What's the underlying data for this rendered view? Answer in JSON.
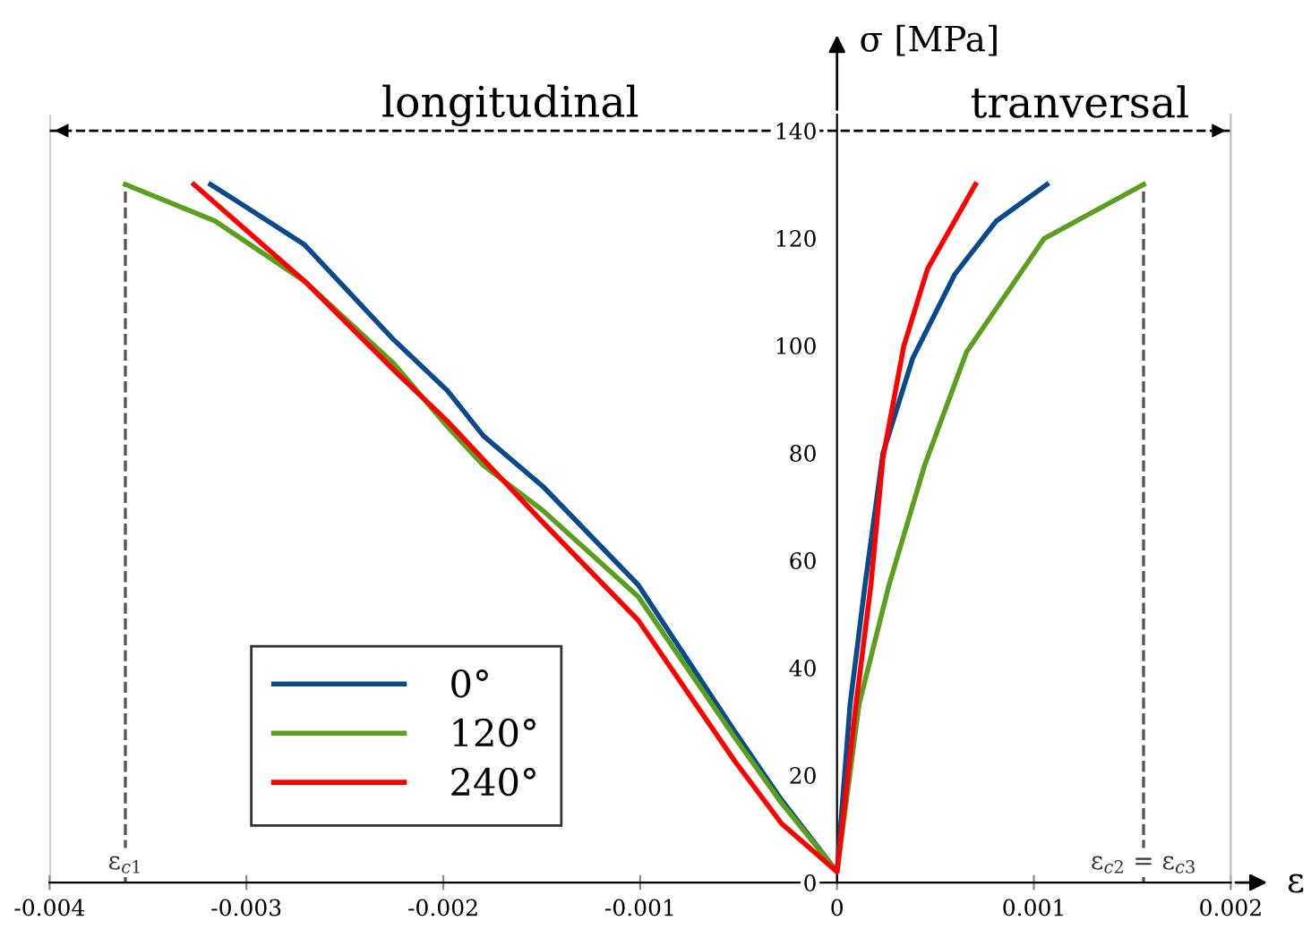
{
  "chart_data": {
    "type": "line",
    "xlabel": "ε",
    "ylabel": "σ [MPa]",
    "xlim": [
      -0.004,
      0.002
    ],
    "xticks": [
      -0.004,
      -0.003,
      -0.002,
      -0.001,
      0,
      0.001,
      0.002
    ],
    "ylim": [
      0,
      143
    ],
    "yticks": [
      0,
      20,
      40,
      60,
      80,
      100,
      120,
      140
    ],
    "grid": false,
    "legend": "bottom left",
    "line_style": "solid",
    "marker": "none",
    "series": [
      {
        "name": "0°",
        "color": "#0a4a8a",
        "x": [
          -0.003182,
          -0.00316,
          -0.002705,
          -0.00225,
          -0.001979,
          -0.001797,
          -0.001495,
          -0.001009,
          -0.000521,
          -0.000282,
          0,
          6.64e-05,
          0.000142,
          0.000233,
          0.000385,
          0.000597,
          0.000809,
          0.001066
        ],
        "values": [
          130,
          129.5,
          118.8,
          101,
          91.6,
          83.2,
          73.8,
          55.4,
          28.2,
          15.4,
          2,
          33.2,
          55.4,
          79.9,
          97.7,
          113.2,
          123.2,
          130
        ]
      },
      {
        "name": "120°",
        "color": "#5a9f1e",
        "x": [
          -0.003615,
          -0.00316,
          -0.002705,
          -0.00225,
          -0.001979,
          -0.001797,
          -0.001495,
          -0.001009,
          -0.000521,
          -0.000282,
          0,
          0.000112,
          0.000264,
          0.000445,
          0.000658,
          0.001051,
          0.001557
        ],
        "values": [
          130,
          123.2,
          112,
          96.6,
          84.9,
          77.7,
          69.3,
          53.2,
          27.1,
          14.8,
          2,
          33.2,
          55.4,
          77.7,
          98.8,
          119.9,
          130
        ]
      },
      {
        "name": "240°",
        "color": "#ff0000",
        "x": [
          -0.003267,
          -0.002705,
          -0.00225,
          -0.001979,
          -0.001797,
          -0.001495,
          -0.001009,
          -0.000521,
          -0.000282,
          0,
          9.67e-05,
          0.000172,
          0.000233,
          0.000339,
          0.00046,
          0.000703
        ],
        "values": [
          130,
          112,
          95.4,
          85.9,
          78.8,
          67.1,
          48.8,
          22.7,
          11,
          2,
          33.2,
          55.4,
          79,
          99.9,
          114.3,
          130
        ]
      }
    ],
    "ref_lines": [
      {
        "axis": "x",
        "value": -0.003615,
        "label": "ε$_{c1}$",
        "color": "#555555",
        "line_style": "dashed"
      },
      {
        "axis": "x",
        "value": 0.001557,
        "label": "ε$_{c2}$ = ε$_{c3}$",
        "color": "#555555",
        "line_style": "dashed"
      },
      {
        "axis": "y",
        "value": 140,
        "color": "#000000",
        "line_style": "dashed"
      }
    ],
    "annotations": [
      "longitudinal",
      "tranversal"
    ]
  }
}
